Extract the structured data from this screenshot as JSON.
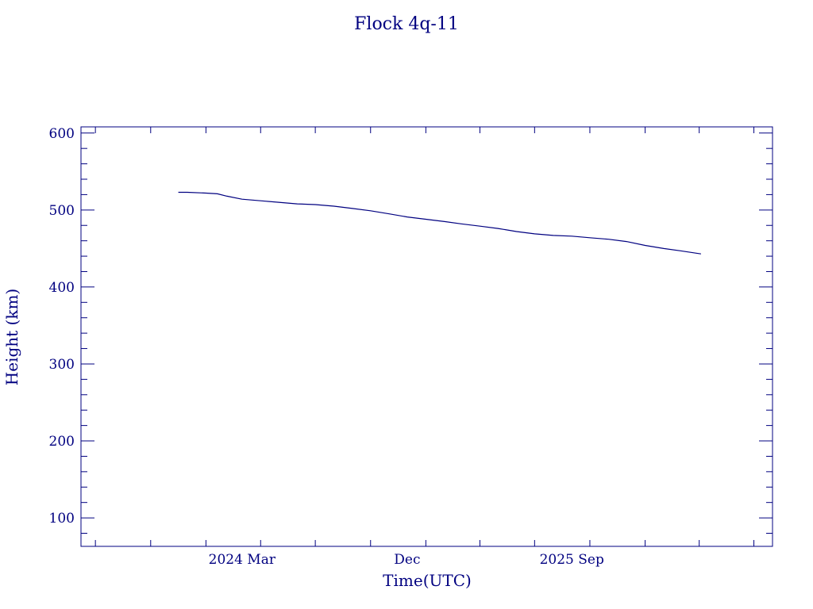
{
  "chart_data": {
    "type": "line",
    "title": "Flock 4q-11",
    "xlabel": "Time(UTC)",
    "ylabel": "Height (km)",
    "xlim": [
      "2023-06-07",
      "2026-08-01"
    ],
    "ylim": [
      63,
      608
    ],
    "grid": false,
    "y_ticks": [
      100,
      200,
      300,
      400,
      500,
      600
    ],
    "x_ticks": [
      {
        "date": "2024-03-01",
        "label": "2024 Mar"
      },
      {
        "date": "2024-12-01",
        "label": "Dec"
      },
      {
        "date": "2025-09-01",
        "label": "2025 Sep"
      }
    ],
    "color": "#000080",
    "series": [
      {
        "x": [
          "2023-11-16",
          "2023-12-01",
          "2024-01-01",
          "2024-01-20",
          "2024-02-05",
          "2024-03-01",
          "2024-04-01",
          "2024-05-01",
          "2024-06-01",
          "2024-07-01",
          "2024-08-01",
          "2024-09-01",
          "2024-10-01",
          "2024-11-01",
          "2024-12-01",
          "2025-01-01",
          "2025-02-01",
          "2025-03-01",
          "2025-04-01",
          "2025-05-01",
          "2025-06-01",
          "2025-07-01",
          "2025-08-01",
          "2025-09-01",
          "2025-10-01",
          "2025-11-01",
          "2025-12-01",
          "2026-01-01",
          "2026-02-01",
          "2026-03-01",
          "2026-04-04"
        ],
        "y": [
          523,
          523,
          522,
          521,
          518,
          514,
          512,
          510,
          508,
          507,
          505,
          502,
          499,
          495,
          491,
          488,
          485,
          482,
          479,
          476,
          472,
          469,
          467,
          466,
          464,
          462,
          459,
          454,
          450,
          447,
          443
        ]
      }
    ]
  }
}
